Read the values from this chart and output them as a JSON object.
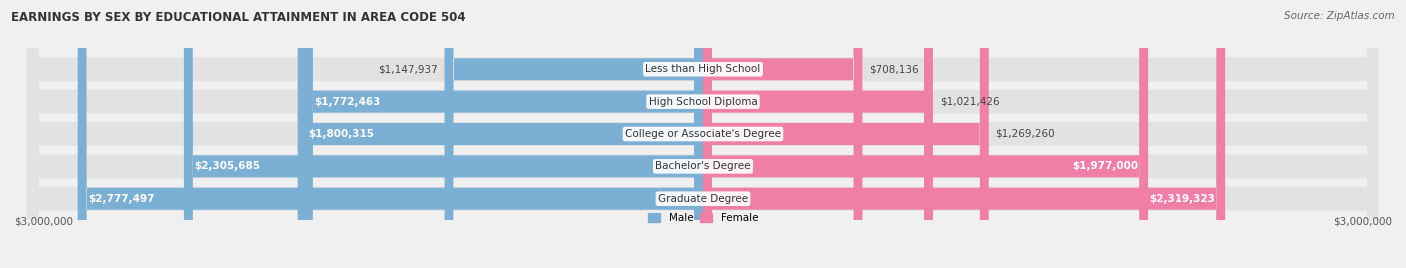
{
  "title": "EARNINGS BY SEX BY EDUCATIONAL ATTAINMENT IN AREA CODE 504",
  "source": "Source: ZipAtlas.com",
  "categories": [
    "Less than High School",
    "High School Diploma",
    "College or Associate's Degree",
    "Bachelor's Degree",
    "Graduate Degree"
  ],
  "male_values": [
    1147937,
    1772463,
    1800315,
    2305685,
    2777497
  ],
  "female_values": [
    708136,
    1021426,
    1269260,
    1977000,
    2319323
  ],
  "male_labels": [
    "$1,147,937",
    "$1,772,463",
    "$1,800,315",
    "$2,305,685",
    "$2,777,497"
  ],
  "female_labels": [
    "$708,136",
    "$1,021,426",
    "$1,269,260",
    "$1,977,000",
    "$2,319,323"
  ],
  "male_inside_threshold": 1500000,
  "female_inside_threshold": 1500000,
  "male_color": "#7bafd4",
  "female_color": "#f07fa8",
  "row_bg_color": "#e2e2e2",
  "max_val": 3000000,
  "x_left_label": "$3,000,000",
  "x_right_label": "$3,000,000",
  "legend_male": "Male",
  "legend_female": "Female",
  "title_fontsize": 8.5,
  "source_fontsize": 7.5,
  "label_fontsize": 7.5,
  "category_fontsize": 7.5,
  "axis_fontsize": 7.5,
  "background_color": "#f0f0f0"
}
